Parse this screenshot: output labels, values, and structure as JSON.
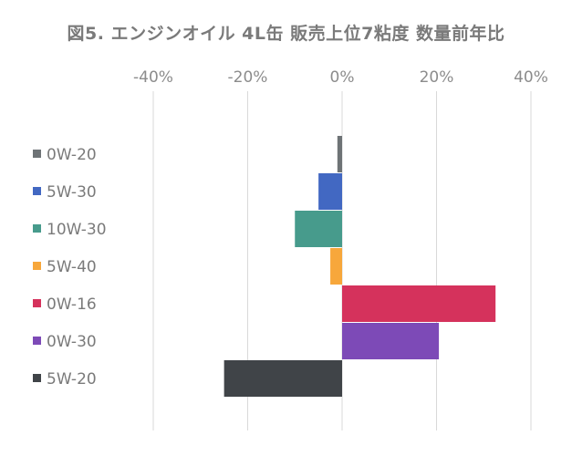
{
  "chart_data": {
    "type": "bar",
    "orientation": "horizontal",
    "title": "図5. エンジンオイル 4L缶 販売上位7粘度 数量前年比",
    "xlabel": "",
    "ylabel": "",
    "xlim": [
      -40,
      40
    ],
    "x_ticks": [
      -40,
      -20,
      0,
      20,
      40
    ],
    "x_tick_labels": [
      "-40%",
      "-20%",
      "0%",
      "20%",
      "40%"
    ],
    "x_axis_position": "top",
    "grid": true,
    "legend": "none",
    "categories": [
      "0W-20",
      "5W-30",
      "10W-30",
      "5W-40",
      "0W-16",
      "0W-30",
      "5W-20"
    ],
    "values": [
      -1,
      -5,
      -10,
      -2.5,
      32.5,
      20.5,
      -25
    ],
    "colors": [
      "#6e7376",
      "#4268c2",
      "#479b8c",
      "#f7a73b",
      "#d5325c",
      "#7d4ab7",
      "#404448"
    ]
  }
}
